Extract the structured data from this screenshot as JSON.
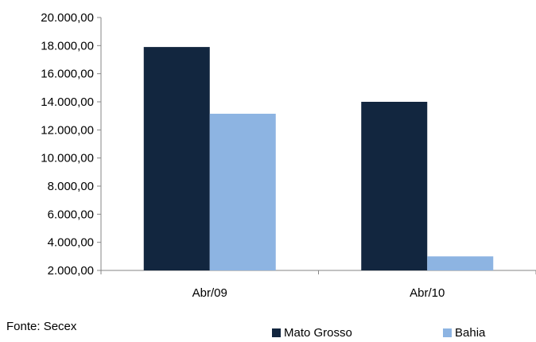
{
  "chart_data": {
    "type": "bar",
    "categories": [
      "Abr/09",
      "Abr/10"
    ],
    "series": [
      {
        "name": "Mato Grosso",
        "values": [
          17900,
          14000
        ],
        "color": "#12263f"
      },
      {
        "name": "Bahia",
        "values": [
          13150,
          3000
        ],
        "color": "#8db4e2"
      }
    ],
    "yticks": [
      "2.000,00",
      "4.000,00",
      "6.000,00",
      "8.000,00",
      "10.000,00",
      "12.000,00",
      "14.000,00",
      "16.000,00",
      "18.000,00",
      "20.000,00"
    ],
    "ylim": [
      2000,
      20000
    ],
    "grid": false,
    "legend_position": "bottom-right",
    "title": "",
    "xlabel": "",
    "ylabel": ""
  },
  "source_text": "Fonte:  Secex"
}
